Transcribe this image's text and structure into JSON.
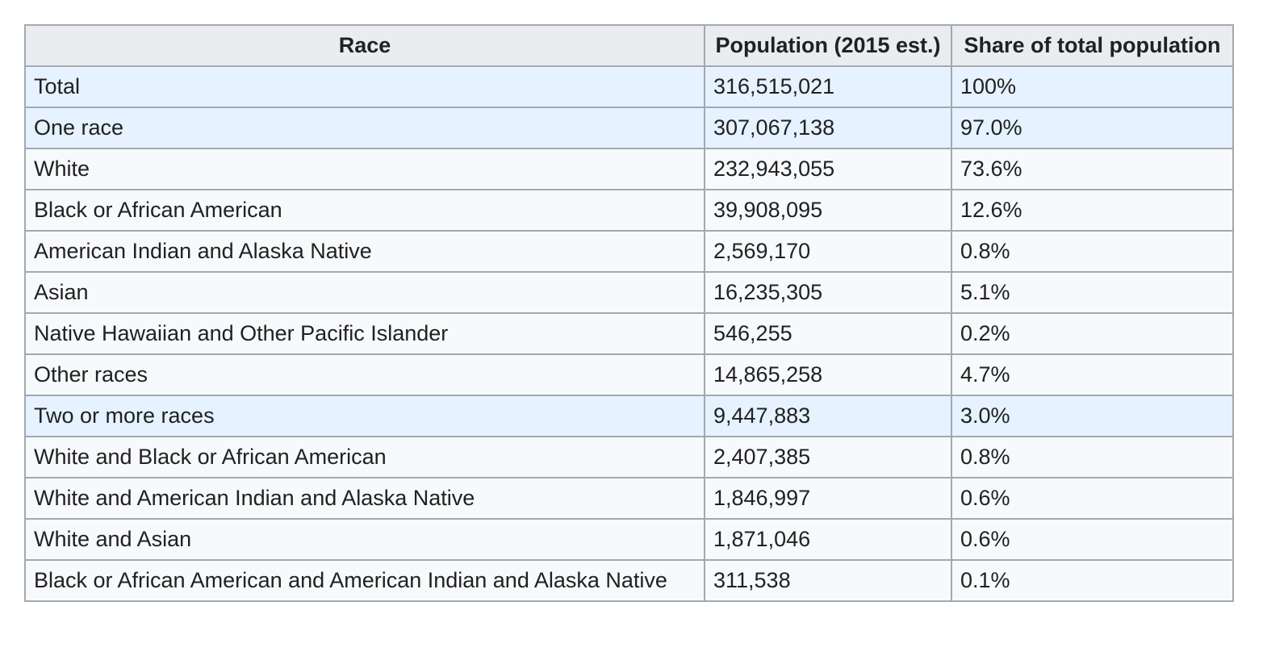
{
  "table": {
    "headers": [
      "Race",
      "Population (2015 est.)",
      "Share of total population"
    ],
    "rows": [
      {
        "race": "Total",
        "population": "316,515,021",
        "share": "100%",
        "group": true
      },
      {
        "race": "One race",
        "population": "307,067,138",
        "share": "97.0%",
        "group": true
      },
      {
        "race": "White",
        "population": "232,943,055",
        "share": "73.6%",
        "group": false
      },
      {
        "race": "Black or African American",
        "population": "39,908,095",
        "share": "12.6%",
        "group": false
      },
      {
        "race": "American Indian and Alaska Native",
        "population": "2,569,170",
        "share": "0.8%",
        "group": false
      },
      {
        "race": "Asian",
        "population": "16,235,305",
        "share": "5.1%",
        "group": false
      },
      {
        "race": "Native Hawaiian and Other Pacific Islander",
        "population": "546,255",
        "share": "0.2%",
        "group": false
      },
      {
        "race": "Other races",
        "population": "14,865,258",
        "share": "4.7%",
        "group": false
      },
      {
        "race": "Two or more races",
        "population": "9,447,883",
        "share": "3.0%",
        "group": true
      },
      {
        "race": "White and Black or African American",
        "population": "2,407,385",
        "share": "0.8%",
        "group": false
      },
      {
        "race": "White and American Indian and Alaska Native",
        "population": "1,846,997",
        "share": "0.6%",
        "group": false
      },
      {
        "race": "White and Asian",
        "population": "1,871,046",
        "share": "0.6%",
        "group": false
      },
      {
        "race": "Black or African American and American Indian and Alaska Native",
        "population": "311,538",
        "share": "0.1%",
        "group": false
      }
    ]
  },
  "colors": {
    "header_bg": "#eaecf0",
    "group_row_bg": "#e6f2ff",
    "row_bg": "#f8f9fa",
    "border": "#a2a9b1",
    "text": "#202122"
  }
}
